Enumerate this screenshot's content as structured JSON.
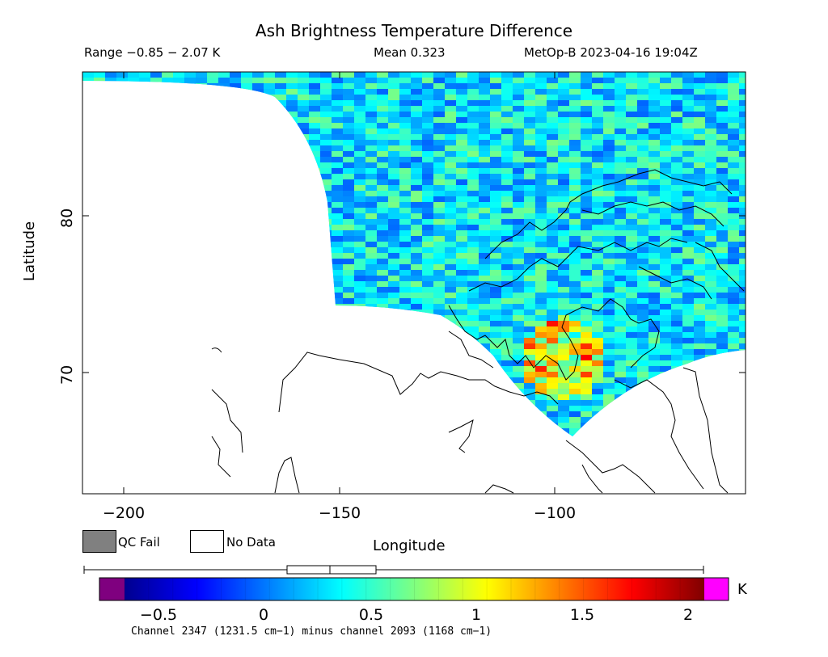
{
  "title": "Ash Brightness Temperature Difference",
  "stats": {
    "range_text": "Range −0.85 − 2.07 K",
    "mean_text": "Mean 0.323",
    "satellite_time": "MetOp-B 2023-04-16 19:04Z"
  },
  "axes": {
    "x_label": "Longitude",
    "y_label": "Latitude",
    "x_ticks": [
      "−200",
      "−150",
      "−100"
    ],
    "y_ticks": [
      "80",
      "70"
    ],
    "x_range": [
      -210,
      -57
    ],
    "y_range": [
      62,
      89
    ]
  },
  "legend": {
    "qc_fail_label": "QC Fail",
    "no_data_label": "No Data",
    "qc_fail_color": "#808080",
    "no_data_color": "#ffffff"
  },
  "colorbar": {
    "units": "K",
    "ticks": [
      "−0.5",
      "0",
      "0.5",
      "1",
      "1.5",
      "2"
    ],
    "range": [
      -0.7,
      2.1
    ],
    "under_color": "#7f007f",
    "over_color": "#ff00ff",
    "box_summary": {
      "min": -0.85,
      "q1": 0.1,
      "median": 0.32,
      "q3": 0.52,
      "max": 2.07
    }
  },
  "footnote": "Channel 2347 (1231.5 cm−1) minus channel 2093 (1168 cm−1)"
}
